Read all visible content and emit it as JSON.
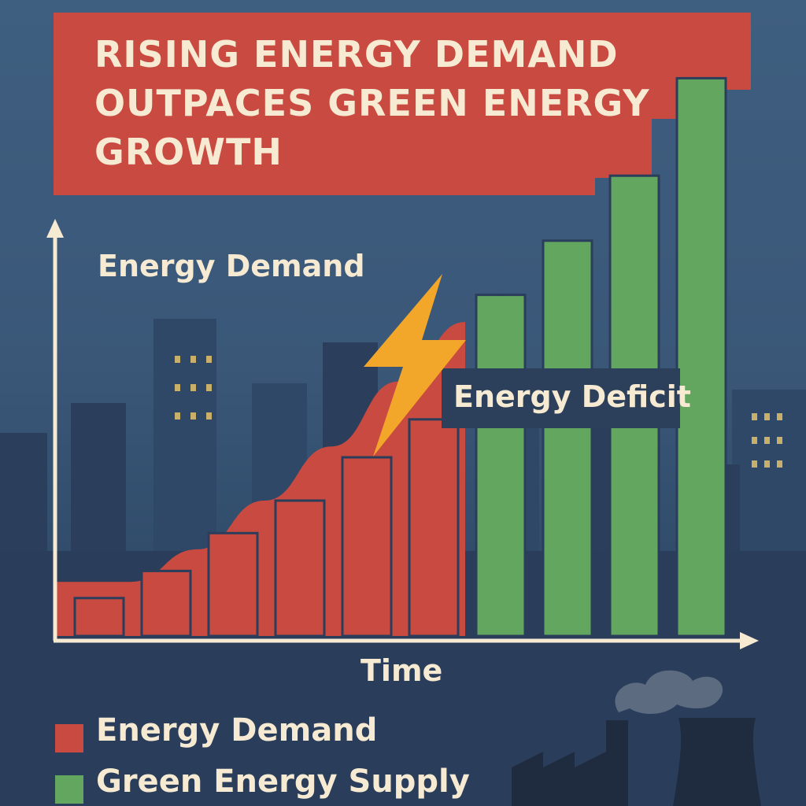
{
  "title": "RISING ENERGY DEMAND OUTPACES GREEN ENERGY GROWTH",
  "annotation": "Energy Deficit",
  "colors": {
    "demand": "#c94a40",
    "supply": "#63a65f",
    "title_bg": "#c94a40",
    "text": "#f6ead2",
    "bolt": "#f2a62a"
  },
  "legend": [
    {
      "label": "Energy Demand",
      "color": "#c94a40"
    },
    {
      "label": "Green Energy Supply",
      "color": "#63a65f"
    }
  ],
  "chart_data": {
    "type": "bar",
    "title": "RISING ENERGY DEMAND OUTPACES GREEN ENERGY GROWTH",
    "xlabel": "Time",
    "ylabel": "Energy Demand",
    "ylim": [
      0,
      100
    ],
    "grid": false,
    "legend_position": "bottom-left",
    "series": [
      {
        "name": "Energy Demand",
        "values": [
          7,
          12,
          19,
          25,
          33,
          40,
          null,
          null,
          null,
          null
        ]
      },
      {
        "name": "Green Energy Supply",
        "values": [
          null,
          null,
          null,
          null,
          null,
          null,
          63,
          73,
          85,
          103
        ]
      }
    ],
    "area": {
      "name": "Energy Demand",
      "values": [
        10,
        16,
        25,
        35,
        47,
        58
      ]
    },
    "annotations": [
      "Energy Deficit"
    ]
  }
}
